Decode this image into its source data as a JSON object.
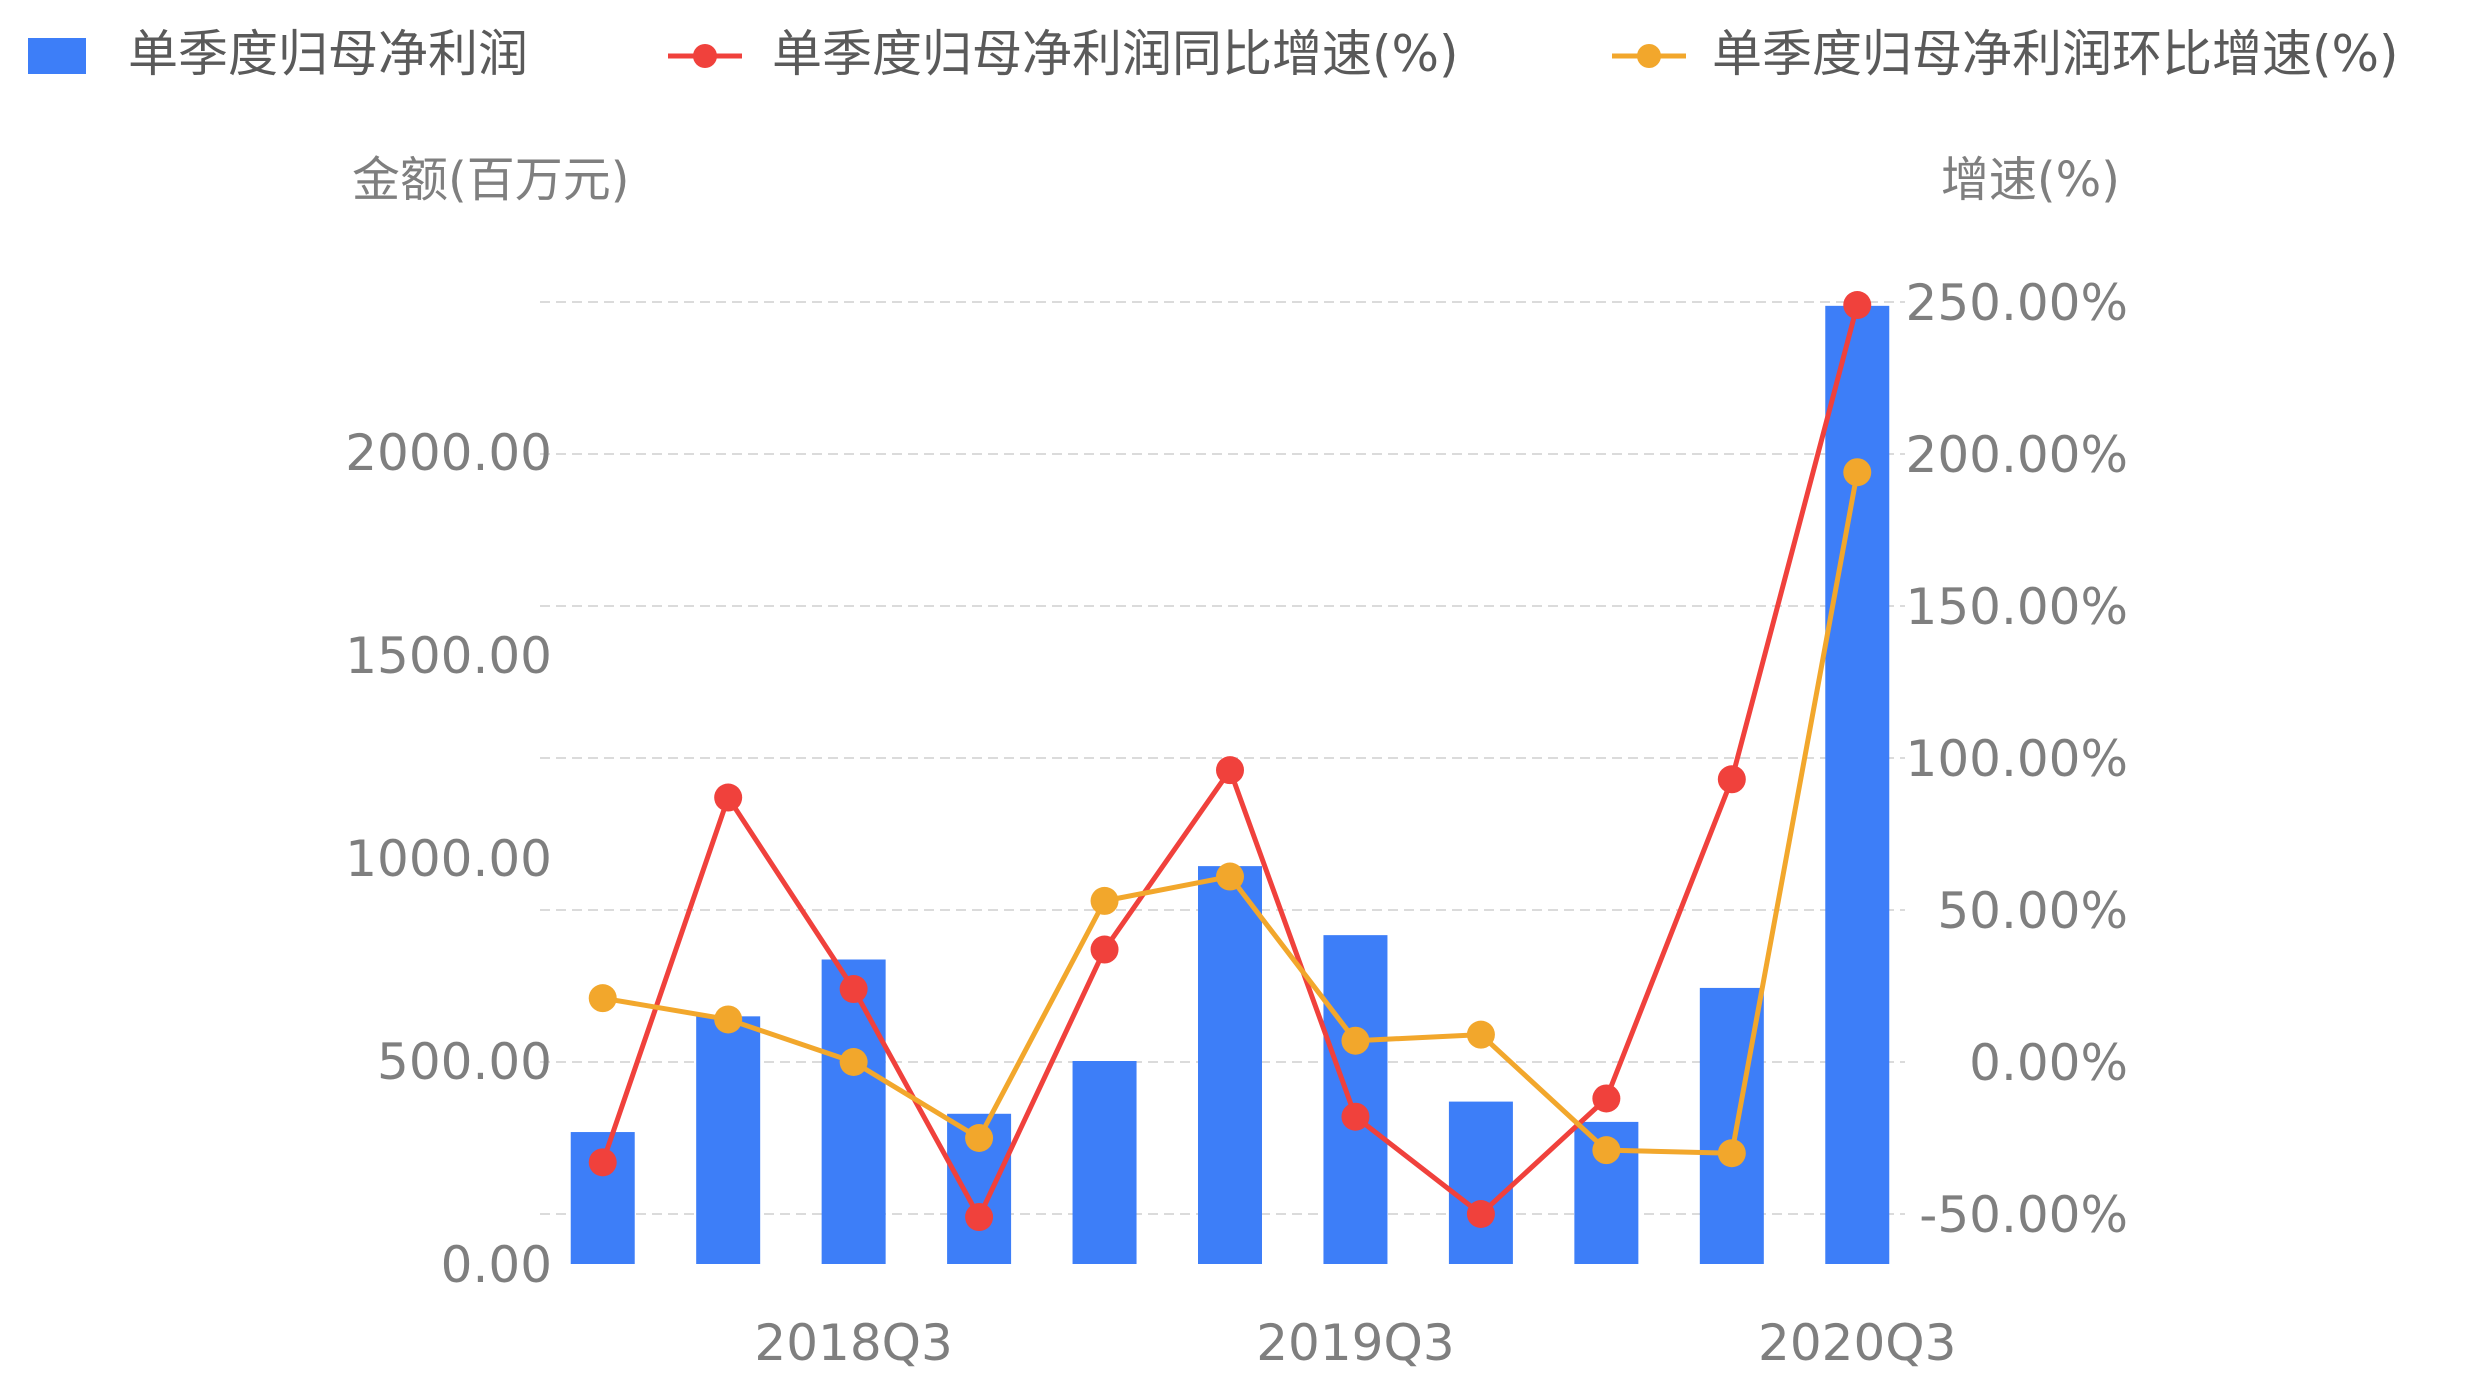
{
  "chart_data": {
    "type": "bar+line",
    "categories": [
      "",
      "",
      "2018Q3",
      "",
      "",
      "",
      "2019Q3",
      "",
      "",
      "",
      "2020Q3"
    ],
    "left_axis": {
      "label": "金额(百万元)",
      "ticks": [
        "0.00",
        "500.00",
        "1000.00",
        "1500.00",
        "2000.00"
      ],
      "ylim": [
        0,
        2400
      ]
    },
    "right_axis": {
      "label": "增速(%)",
      "ticks": [
        "-50.00%",
        "0.00%",
        "50.00%",
        "100.00%",
        "150.00%",
        "200.00%",
        "250.00%"
      ],
      "ylim": [
        -66,
        266
      ]
    },
    "series": [
      {
        "name": "单季度归母净利润",
        "kind": "bar",
        "axis": "left",
        "color": "#3d7ef8",
        "values": [
          325,
          610,
          750,
          370,
          500,
          980,
          810,
          400,
          350,
          680,
          2360
        ]
      },
      {
        "name": "单季度归母净利润同比增速(%)",
        "kind": "line",
        "axis": "right",
        "color": "#f0413c",
        "values": [
          -33,
          87,
          24,
          -51,
          37,
          96,
          -18,
          -50,
          -12,
          93,
          249
        ]
      },
      {
        "name": "单季度归母净利润环比增速(%)",
        "kind": "line",
        "axis": "right",
        "color": "#f2a72c",
        "values": [
          21,
          14,
          0,
          -25,
          53,
          61,
          7,
          9,
          -29,
          -30,
          194
        ]
      }
    ],
    "grid": true,
    "legend_position": "top"
  }
}
